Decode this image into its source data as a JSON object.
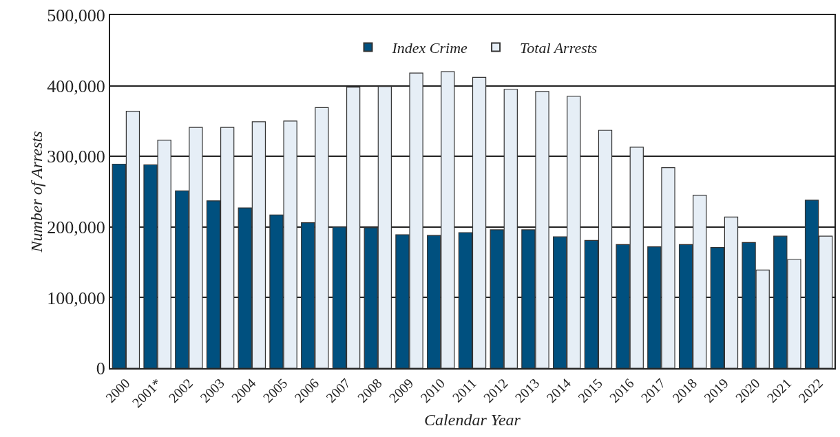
{
  "chart_data": {
    "type": "bar",
    "xlabel": "Calendar Year",
    "ylabel": "Number of Arrests",
    "categories": [
      "2000",
      "2001*",
      "2002",
      "2003",
      "2004",
      "2005",
      "2006",
      "2007",
      "2008",
      "2009",
      "2010",
      "2011",
      "2012",
      "2013",
      "2014",
      "2015",
      "2016",
      "2017",
      "2018",
      "2019",
      "2020",
      "2021",
      "2022"
    ],
    "series": [
      {
        "name": "Index Crime",
        "color": "#00507f",
        "values": [
          289000,
          288000,
          251000,
          237000,
          227000,
          217000,
          206000,
          200000,
          199000,
          189000,
          188000,
          192000,
          196000,
          196000,
          186000,
          181000,
          175000,
          172000,
          175000,
          171000,
          178000,
          187000,
          238000
        ]
      },
      {
        "name": "Total Arrests",
        "color": "#e6eef6",
        "values": [
          364000,
          323000,
          341000,
          341000,
          349000,
          350000,
          369000,
          398000,
          399000,
          418000,
          420000,
          412000,
          395000,
          392000,
          385000,
          337000,
          313000,
          284000,
          245000,
          214000,
          139000,
          154000,
          187000
        ]
      }
    ],
    "ylim": [
      0,
      500000
    ],
    "yticks": [
      {
        "value": 0,
        "label": "0"
      },
      {
        "value": 100000,
        "label": "100,000"
      },
      {
        "value": 200000,
        "label": "200,000"
      },
      {
        "value": 300000,
        "label": "300,000"
      },
      {
        "value": 400000,
        "label": "400,000"
      },
      {
        "value": 500000,
        "label": "500,000"
      }
    ],
    "grid": "y",
    "legend": "top"
  }
}
